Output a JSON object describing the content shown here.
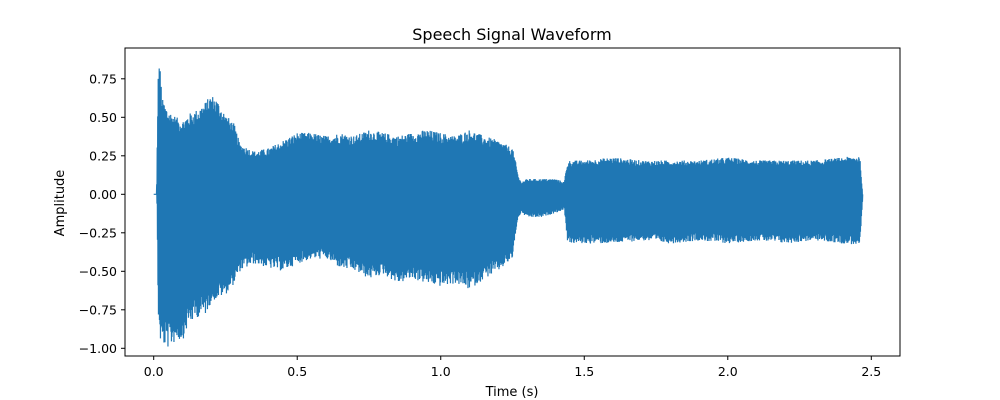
{
  "chart_data": {
    "type": "line",
    "title": "Speech Signal Waveform",
    "xlabel": "Time (s)",
    "ylabel": "Amplitude",
    "xlim": [
      -0.1,
      2.6
    ],
    "ylim": [
      -1.05,
      0.95
    ],
    "x_ticks": [
      0.0,
      0.5,
      1.0,
      1.5,
      2.0,
      2.5
    ],
    "x_tick_labels": [
      "0.0",
      "0.5",
      "1.0",
      "1.5",
      "2.0",
      "2.5"
    ],
    "y_ticks": [
      -1.0,
      -0.75,
      -0.5,
      -0.25,
      0.0,
      0.25,
      0.5,
      0.75
    ],
    "y_tick_labels": [
      "−1.00",
      "−0.75",
      "−0.50",
      "−0.25",
      "0.00",
      "0.25",
      "0.50",
      "0.75"
    ],
    "grid": false,
    "legend": "none",
    "series": [
      {
        "color": "#1f77b4",
        "envelope": {
          "t": [
            0.0,
            0.01,
            0.015,
            0.02,
            0.03,
            0.05,
            0.08,
            0.1,
            0.12,
            0.15,
            0.18,
            0.2,
            0.22,
            0.25,
            0.28,
            0.3,
            0.35,
            0.4,
            0.45,
            0.5,
            0.55,
            0.6,
            0.65,
            0.7,
            0.75,
            0.8,
            0.85,
            0.9,
            0.95,
            1.0,
            1.05,
            1.1,
            1.15,
            1.2,
            1.25,
            1.26,
            1.27,
            1.28,
            1.3,
            1.35,
            1.4,
            1.43,
            1.44,
            1.45,
            1.5,
            1.6,
            1.7,
            1.8,
            1.9,
            2.0,
            2.1,
            2.2,
            2.3,
            2.4,
            2.46,
            2.47
          ],
          "max": [
            0.0,
            0.0,
            0.75,
            0.88,
            0.62,
            0.55,
            0.5,
            0.48,
            0.52,
            0.55,
            0.6,
            0.65,
            0.62,
            0.52,
            0.46,
            0.33,
            0.28,
            0.3,
            0.35,
            0.4,
            0.4,
            0.38,
            0.4,
            0.38,
            0.42,
            0.4,
            0.38,
            0.4,
            0.42,
            0.4,
            0.38,
            0.42,
            0.38,
            0.35,
            0.3,
            0.22,
            0.12,
            0.08,
            0.1,
            0.1,
            0.1,
            0.08,
            0.2,
            0.22,
            0.22,
            0.24,
            0.22,
            0.22,
            0.22,
            0.24,
            0.22,
            0.22,
            0.22,
            0.24,
            0.25,
            0.0
          ],
          "min": [
            0.0,
            0.0,
            -0.78,
            -0.95,
            -0.98,
            -1.0,
            -0.95,
            -0.95,
            -0.85,
            -0.8,
            -0.78,
            -0.7,
            -0.68,
            -0.65,
            -0.58,
            -0.5,
            -0.45,
            -0.48,
            -0.5,
            -0.45,
            -0.42,
            -0.42,
            -0.48,
            -0.5,
            -0.55,
            -0.52,
            -0.58,
            -0.55,
            -0.58,
            -0.6,
            -0.58,
            -0.62,
            -0.55,
            -0.5,
            -0.42,
            -0.25,
            -0.15,
            -0.12,
            -0.15,
            -0.15,
            -0.12,
            -0.1,
            -0.3,
            -0.32,
            -0.32,
            -0.32,
            -0.3,
            -0.32,
            -0.3,
            -0.32,
            -0.3,
            -0.32,
            -0.3,
            -0.32,
            -0.33,
            0.0
          ]
        }
      }
    ]
  }
}
